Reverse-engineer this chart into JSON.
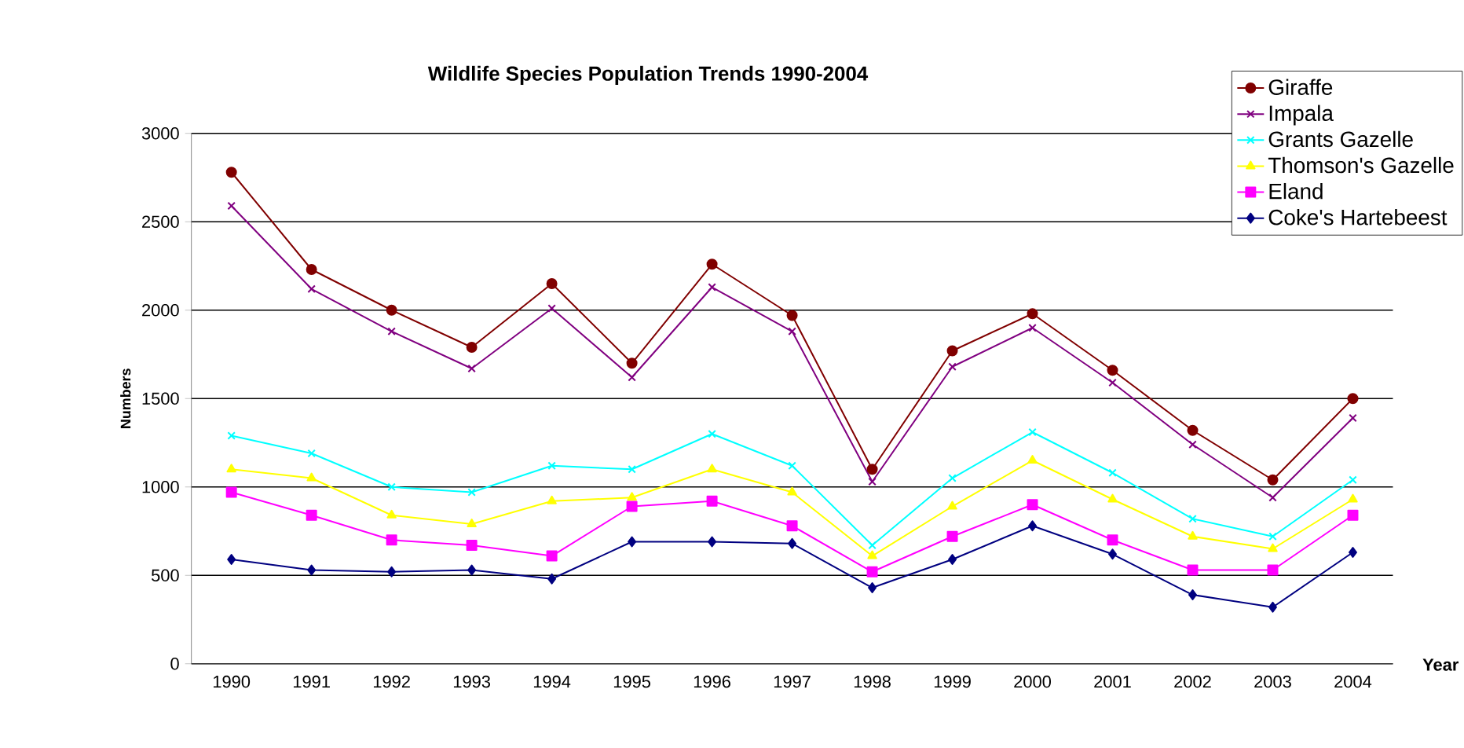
{
  "chart_data": {
    "type": "line",
    "title": "Wildlife Species Population Trends 1990-2004",
    "xlabel": "Year",
    "ylabel": "Numbers",
    "categories": [
      "1990",
      "1991",
      "1992",
      "1993",
      "1994",
      "1995",
      "1996",
      "1997",
      "1998",
      "1999",
      "2000",
      "2001",
      "2002",
      "2003",
      "2004"
    ],
    "ylim": [
      0,
      3000
    ],
    "yticks": [
      0,
      500,
      1000,
      1500,
      2000,
      2500,
      3000
    ],
    "grid": "y",
    "legend": "top right",
    "line_style": "solid",
    "series": [
      {
        "name": "Giraffe",
        "color": "#800000",
        "marker": "circle",
        "values": [
          2780,
          2230,
          2000,
          1790,
          2150,
          1700,
          2260,
          1970,
          1100,
          1770,
          1980,
          1660,
          1320,
          1040,
          1500
        ]
      },
      {
        "name": "Impala",
        "color": "#800080",
        "marker": "cross",
        "values": [
          2590,
          2120,
          1880,
          1670,
          2010,
          1620,
          2130,
          1880,
          1030,
          1680,
          1900,
          1590,
          1240,
          940,
          1390
        ]
      },
      {
        "name": "Grants Gazelle",
        "color": "#00ffff",
        "marker": "cross",
        "values": [
          1290,
          1190,
          1000,
          970,
          1120,
          1100,
          1300,
          1120,
          670,
          1050,
          1310,
          1080,
          820,
          720,
          1040
        ]
      },
      {
        "name": "Thomson's Gazelle",
        "color": "#ffff00",
        "marker": "triangle",
        "values": [
          1100,
          1050,
          840,
          790,
          920,
          940,
          1100,
          970,
          610,
          890,
          1150,
          930,
          720,
          650,
          930
        ]
      },
      {
        "name": "Eland",
        "color": "#ff00ff",
        "marker": "square",
        "values": [
          970,
          840,
          700,
          670,
          610,
          890,
          920,
          780,
          520,
          720,
          900,
          700,
          530,
          530,
          840
        ]
      },
      {
        "name": "Coke's Hartebeest",
        "color": "#000080",
        "marker": "diamond",
        "values": [
          590,
          530,
          520,
          530,
          480,
          690,
          690,
          680,
          430,
          590,
          780,
          620,
          390,
          320,
          630
        ]
      }
    ]
  }
}
